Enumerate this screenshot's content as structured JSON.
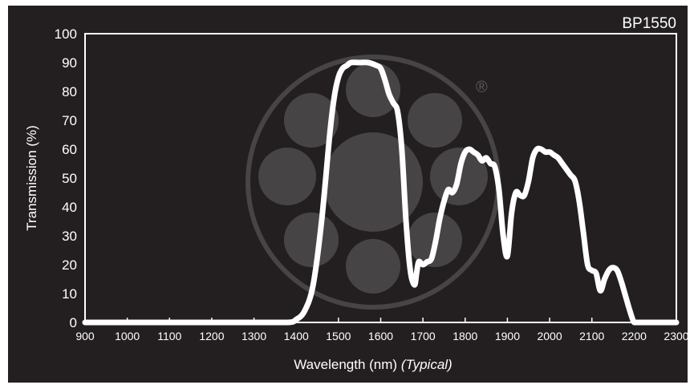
{
  "chart_data": {
    "type": "line",
    "title": "BP1550",
    "xlabel": "Wavelength (nm)",
    "xlabel_suffix": "(Typical)",
    "ylabel": "Transmission (%)",
    "xlim": [
      900,
      2300
    ],
    "ylim": [
      0,
      100
    ],
    "xticks": [
      "900",
      "1000",
      "1100",
      "1200",
      "1300",
      "1400",
      "1500",
      "1600",
      "1700",
      "1800",
      "1900",
      "2000",
      "2100",
      "2200",
      "2300"
    ],
    "yticks": [
      "0",
      "10",
      "20",
      "30",
      "40",
      "50",
      "60",
      "70",
      "80",
      "90",
      "100"
    ],
    "grid": false,
    "line_color": "#ffffff",
    "background": "#231f20",
    "watermark_symbol": "®",
    "series": [
      {
        "x": [
          900,
          1000,
          1100,
          1200,
          1300,
          1380,
          1400,
          1420,
          1440,
          1460,
          1480,
          1490,
          1500,
          1510,
          1520,
          1530,
          1550,
          1570,
          1590,
          1600,
          1610,
          1620,
          1630,
          1640,
          1650,
          1660,
          1670,
          1680,
          1685,
          1690,
          1700,
          1710,
          1720,
          1730,
          1740,
          1750,
          1760,
          1770,
          1780,
          1790,
          1800,
          1810,
          1820,
          1830,
          1840,
          1850,
          1860,
          1870,
          1880,
          1890,
          1900,
          1910,
          1920,
          1930,
          1940,
          1950,
          1960,
          1970,
          1980,
          1990,
          2000,
          2010,
          2020,
          2030,
          2040,
          2050,
          2060,
          2070,
          2080,
          2090,
          2100,
          2110,
          2120,
          2130,
          2140,
          2150,
          2160,
          2170,
          2180,
          2190,
          2200,
          2210,
          2220,
          2230,
          2250,
          2300
        ],
        "y": [
          0,
          0,
          0,
          0,
          0,
          0,
          1,
          4,
          13,
          35,
          66,
          78,
          85,
          88,
          89,
          90,
          90,
          90,
          89,
          88,
          84,
          79,
          76,
          73,
          60,
          35,
          18,
          13,
          17,
          21,
          20,
          21,
          22,
          28,
          36,
          42,
          46,
          45,
          48,
          55,
          59,
          60,
          59,
          58,
          56,
          57,
          55,
          54,
          46,
          30,
          23,
          38,
          45,
          44,
          44,
          49,
          57,
          60,
          60,
          59,
          59,
          58,
          57,
          55,
          53,
          51,
          49,
          42,
          31,
          20,
          18,
          17,
          11,
          15,
          18,
          19,
          18,
          14,
          9,
          4,
          0,
          0,
          0,
          0,
          0,
          0
        ]
      }
    ]
  }
}
